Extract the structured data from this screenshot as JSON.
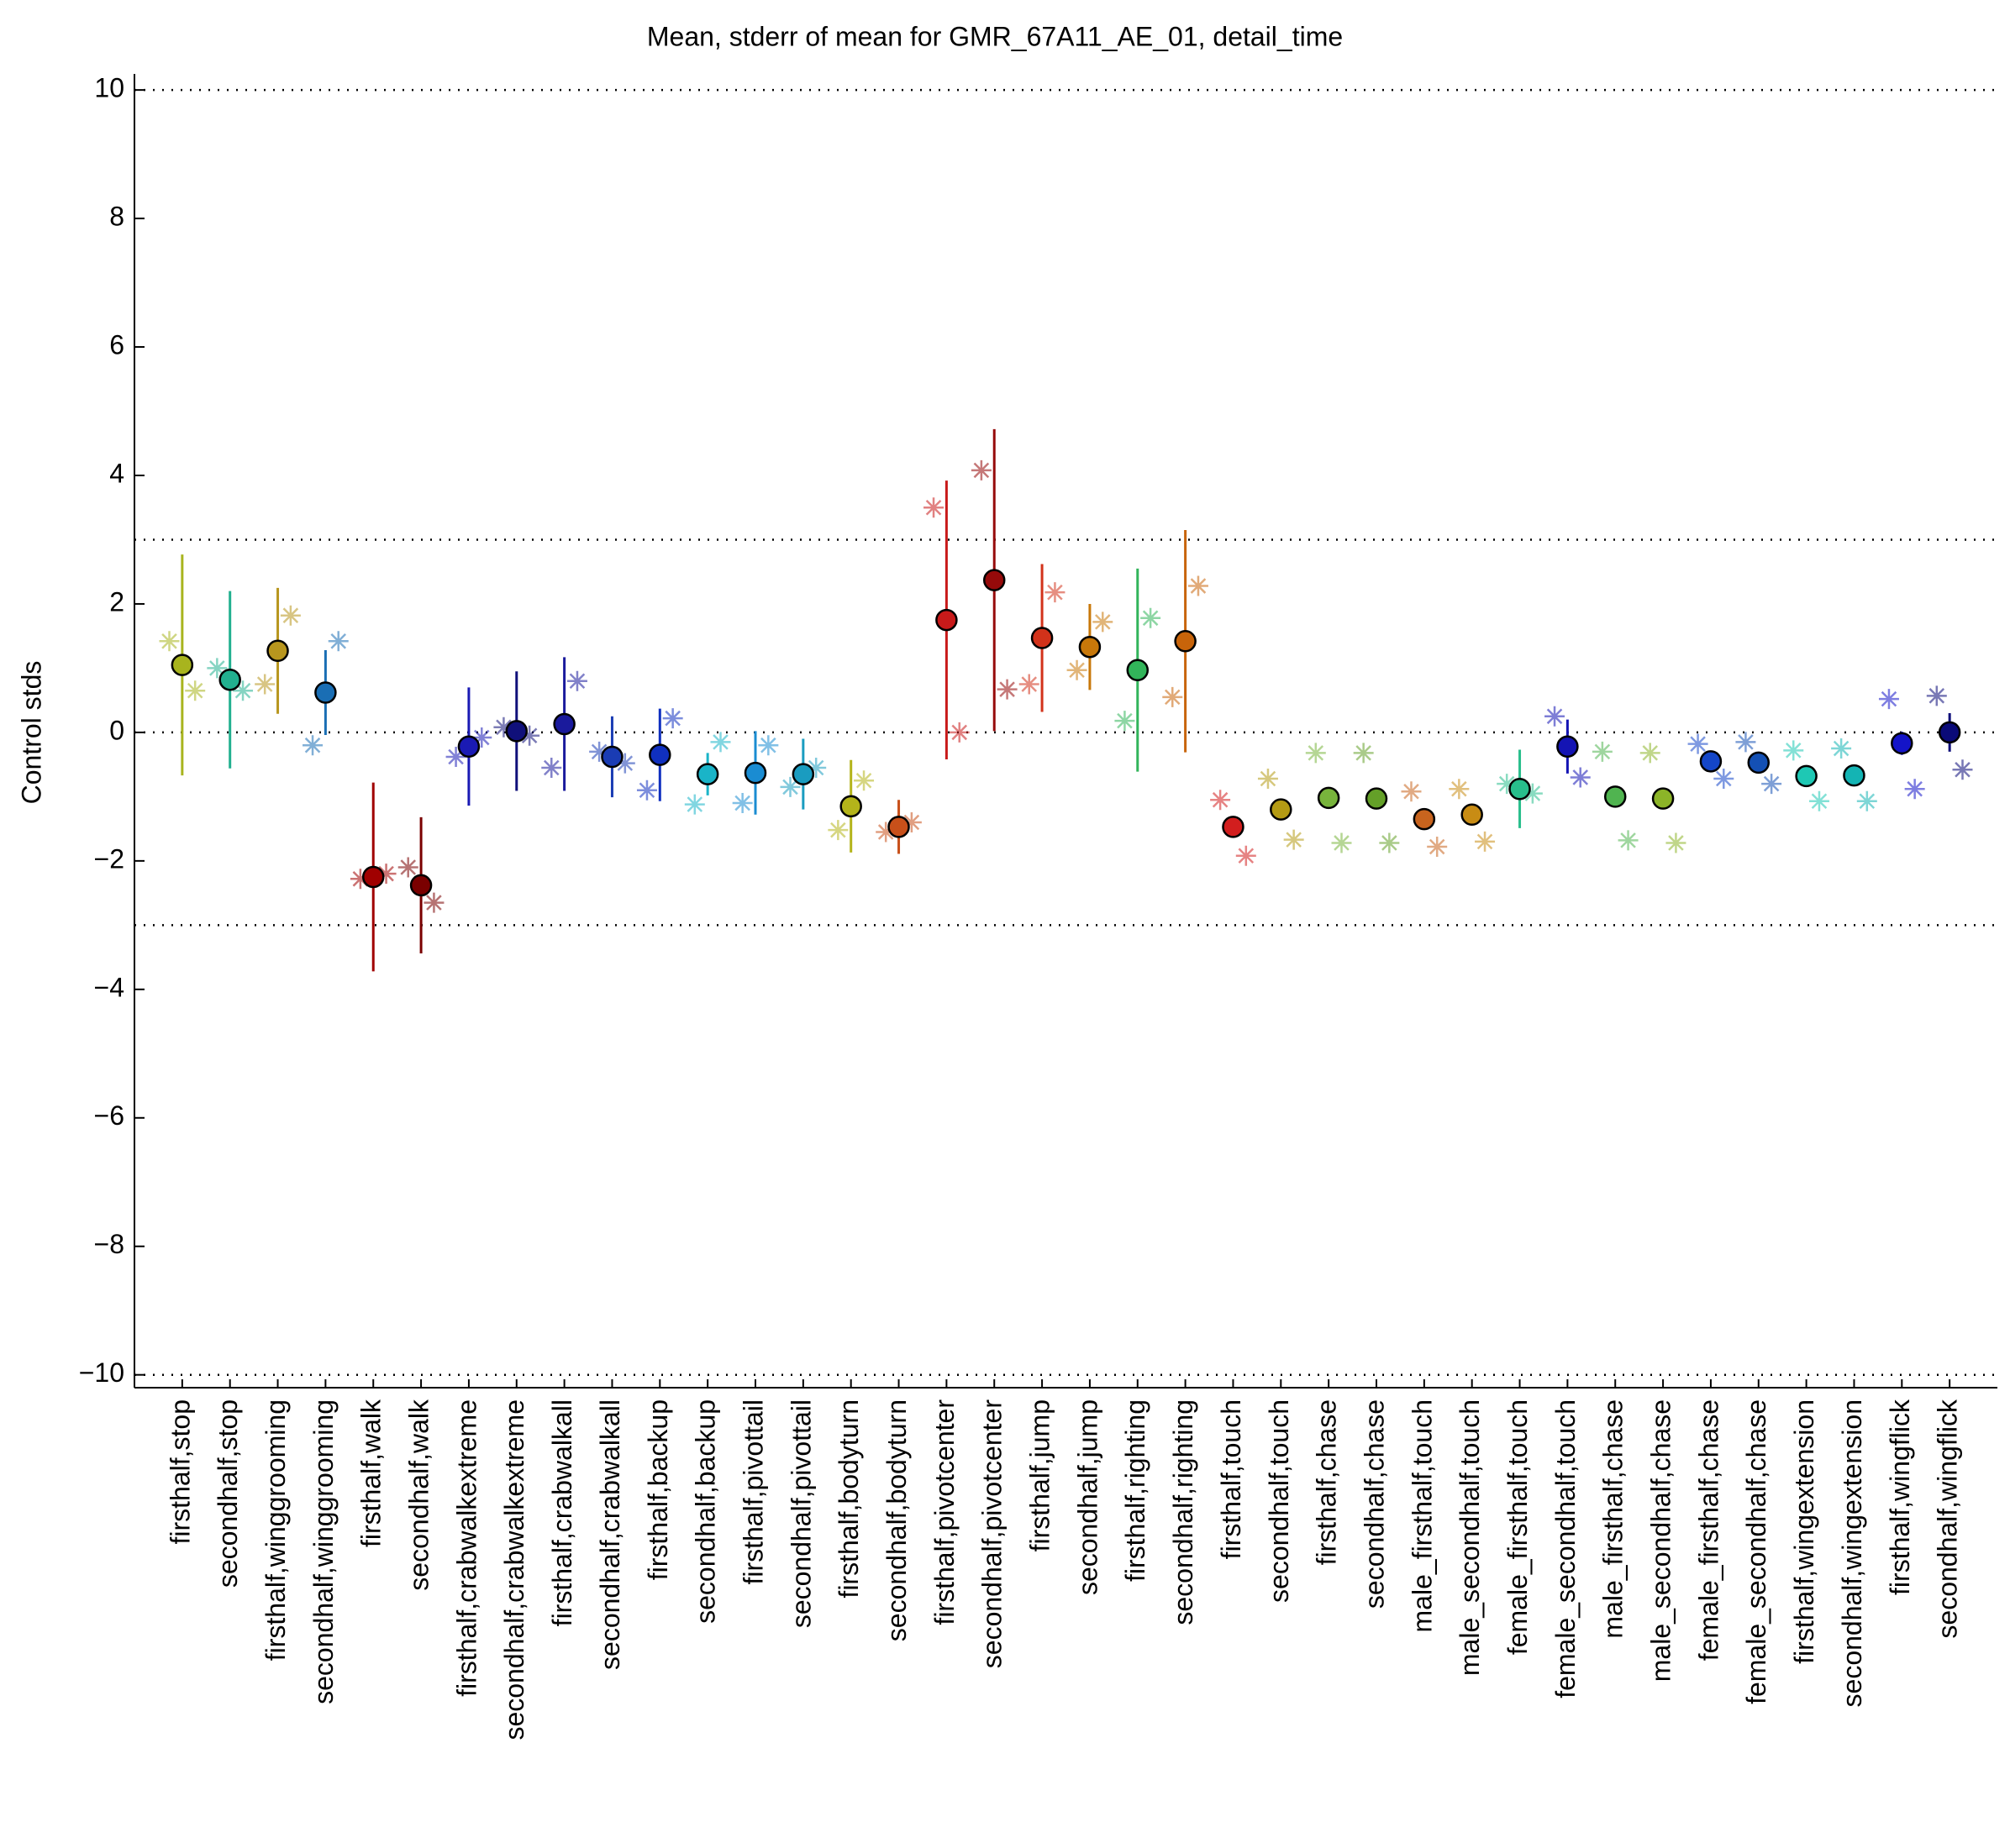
{
  "chart_data": {
    "type": "errorbar",
    "title": "Mean, stderr of mean for GMR_67A11_AE_01, detail_time",
    "ylabel": "Control stds",
    "categories": [
      "firsthalf,stop",
      "secondhalf,stop",
      "firsthalf,winggrooming",
      "secondhalf,winggrooming",
      "firsthalf,walk",
      "secondhalf,walk",
      "firsthalf,crabwalkextreme",
      "secondhalf,crabwalkextreme",
      "firsthalf,crabwalkall",
      "secondhalf,crabwalkall",
      "firsthalf,backup",
      "secondhalf,backup",
      "firsthalf,pivottail",
      "secondhalf,pivottail",
      "firsthalf,bodyturn",
      "secondhalf,bodyturn",
      "firsthalf,pivotcenter",
      "secondhalf,pivotcenter",
      "firsthalf,jump",
      "secondhalf,jump",
      "firsthalf,righting",
      "secondhalf,righting",
      "firsthalf,touch",
      "secondhalf,touch",
      "firsthalf,chase",
      "secondhalf,chase",
      "male_firsthalf,touch",
      "male_secondhalf,touch",
      "female_firsthalf,touch",
      "female_secondhalf,touch",
      "male_firsthalf,chase",
      "male_secondhalf,chase",
      "female_firsthalf,chase",
      "female_secondhalf,chase",
      "firsthalf,wingextension",
      "secondhalf,wingextension",
      "firsthalf,wingflick",
      "secondhalf,wingflick"
    ],
    "colors": [
      "#a8b41e",
      "#22b08f",
      "#b8961e",
      "#1a6eb4",
      "#a00000",
      "#7a0000",
      "#1a1ab4",
      "#10107a",
      "#1a1a9c",
      "#1a3cb4",
      "#1030c0",
      "#1ab4c8",
      "#1a8cd2",
      "#1a9cc0",
      "#b4b41a",
      "#c8501a",
      "#c81a1a",
      "#960a0a",
      "#d2321a",
      "#c8780a",
      "#32b45a",
      "#c8640a",
      "#d21e1e",
      "#b49b14",
      "#78b43c",
      "#64a028",
      "#c8641e",
      "#c88c14",
      "#28be8c",
      "#1414b4",
      "#50b450",
      "#8cb428",
      "#1446c8",
      "#1450b4",
      "#1ec8b4",
      "#14b4b4",
      "#1414c8",
      "#0a0a78"
    ],
    "means": [
      1.05,
      0.82,
      1.27,
      0.62,
      -2.25,
      -2.38,
      -0.22,
      0.02,
      0.13,
      -0.38,
      -0.35,
      -0.65,
      -0.63,
      -0.65,
      -1.15,
      -1.47,
      1.75,
      2.37,
      1.47,
      1.33,
      0.97,
      1.42,
      -1.47,
      -1.2,
      -1.02,
      -1.03,
      -1.35,
      -1.28,
      -0.88,
      -0.22,
      -1.0,
      -1.03,
      -0.45,
      -0.47,
      -0.68,
      -0.67,
      -0.17,
      0.0
    ],
    "errors": [
      1.72,
      1.38,
      0.98,
      0.66,
      1.47,
      1.06,
      0.92,
      0.93,
      1.04,
      0.63,
      0.72,
      0.33,
      0.65,
      0.55,
      0.72,
      0.42,
      2.17,
      2.35,
      1.15,
      0.67,
      1.58,
      1.73,
      0.12,
      0.05,
      0.0,
      0.0,
      0.0,
      0.0,
      0.61,
      0.42,
      0.0,
      0.0,
      0.08,
      0.15,
      0.0,
      0.0,
      0.18,
      0.3
    ],
    "star_left_values": [
      1.42,
      1.0,
      0.75,
      -0.2,
      -2.28,
      -2.1,
      -0.38,
      0.08,
      -0.55,
      -0.3,
      -0.9,
      -1.12,
      -1.1,
      -0.85,
      -1.52,
      -1.55,
      3.5,
      4.08,
      0.75,
      0.97,
      0.18,
      0.55,
      -1.05,
      -0.72,
      -0.32,
      -0.32,
      -0.92,
      -0.88,
      -0.8,
      0.25,
      -0.3,
      -0.32,
      -0.18,
      -0.15,
      -0.28,
      -0.25,
      0.52,
      0.57
    ],
    "star_right_values": [
      0.65,
      0.65,
      1.82,
      1.42,
      -2.2,
      -2.65,
      -0.08,
      -0.05,
      0.8,
      -0.48,
      0.22,
      -0.15,
      -0.2,
      -0.55,
      -0.75,
      -1.4,
      0.0,
      0.67,
      2.18,
      1.72,
      1.78,
      2.28,
      -1.92,
      -1.67,
      -1.72,
      -1.72,
      -1.78,
      -1.7,
      -0.95,
      -0.7,
      -1.68,
      -1.72,
      -0.72,
      -0.8,
      -1.07,
      -1.07,
      -0.88,
      -0.58
    ],
    "xlim": [
      0,
      39
    ],
    "ylim": [
      -10.2,
      10.25
    ],
    "yticks": [
      {
        "value": -10,
        "label": "−10"
      },
      {
        "value": -8,
        "label": "−8"
      },
      {
        "value": -6,
        "label": "−6"
      },
      {
        "value": -4,
        "label": "−4"
      },
      {
        "value": -2,
        "label": "−2"
      },
      0,
      2,
      4,
      6,
      8,
      10
    ],
    "reference_lines": [
      -10,
      -3,
      0,
      3,
      10
    ]
  }
}
